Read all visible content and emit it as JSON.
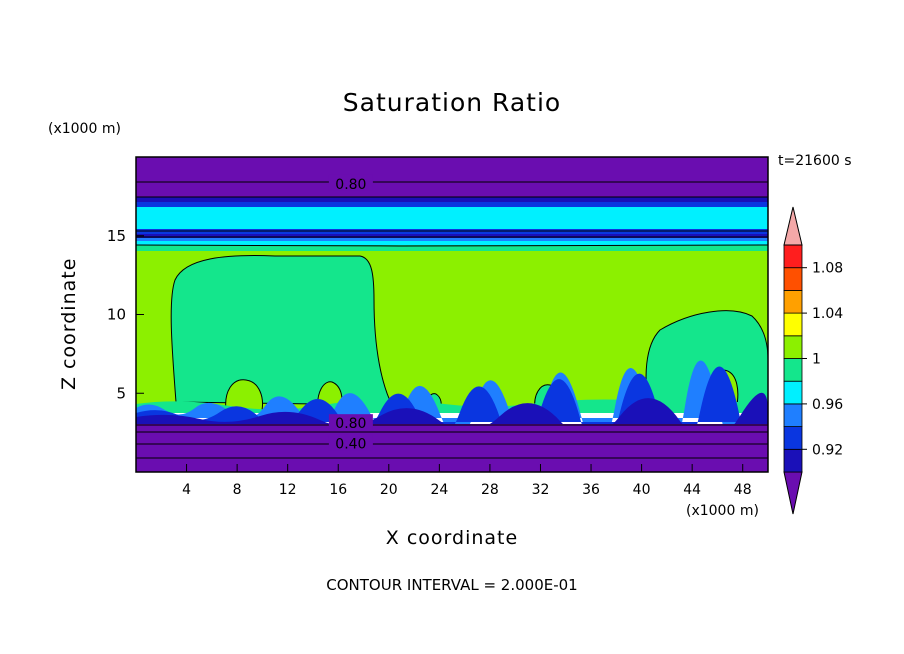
{
  "chart_data": {
    "type": "heatmap",
    "title": "Saturation Ratio",
    "xlabel": "X coordinate",
    "ylabel": "Z coordinate",
    "x_unit": "(x1000 m)",
    "y_unit": "(x1000 m)",
    "time_label": "t=21600 s",
    "footer": "CONTOUR INTERVAL = 2.000E-01",
    "xlim": [
      0,
      50
    ],
    "ylim": [
      0,
      20
    ],
    "x_ticks": [
      4,
      8,
      12,
      16,
      20,
      24,
      28,
      32,
      36,
      40,
      44,
      48
    ],
    "y_ticks": [
      5,
      10,
      15
    ],
    "contour_labels": [
      {
        "text": "0.80",
        "x": 17,
        "z": 18.3
      },
      {
        "text": "0.80",
        "x": 17,
        "z": 3.1
      },
      {
        "text": "0.40",
        "x": 17,
        "z": 1.8
      }
    ],
    "colorbar": {
      "levels": [
        "0.92",
        "0.96",
        "1",
        "1.04",
        "1.08"
      ],
      "bands": [
        {
          "color": "#6a0db0",
          "range": "< 0.92"
        },
        {
          "color": "#1a10b8",
          "range": "0.92 - 0.94"
        },
        {
          "color": "#0a36e0",
          "range": "0.94 - 0.96"
        },
        {
          "color": "#1f7fff",
          "range": "0.96 - 0.98"
        },
        {
          "color": "#00f0ff",
          "range": "0.98 - 0.99"
        },
        {
          "color": "#14e68c",
          "range": "0.99 - 1"
        },
        {
          "color": "#8cf000",
          "range": "1 - 1.02"
        },
        {
          "color": "#ffff00",
          "range": "1.02 - 1.04"
        },
        {
          "color": "#ffa000",
          "range": "1.04 - 1.06"
        },
        {
          "color": "#ff5000",
          "range": "1.06 - 1.08"
        },
        {
          "color": "#ff1e1e",
          "range": "1.08 - 1.10"
        },
        {
          "color": "#f4a8a8",
          "range": "> 1.10"
        }
      ]
    }
  },
  "colors": {
    "purple": "#6a0db0",
    "navy": "#1a10b8",
    "blue": "#0a36e0",
    "lightblue": "#1f7fff",
    "cyan": "#00f0ff",
    "seagreen": "#14e68c",
    "lime": "#8cf000"
  }
}
